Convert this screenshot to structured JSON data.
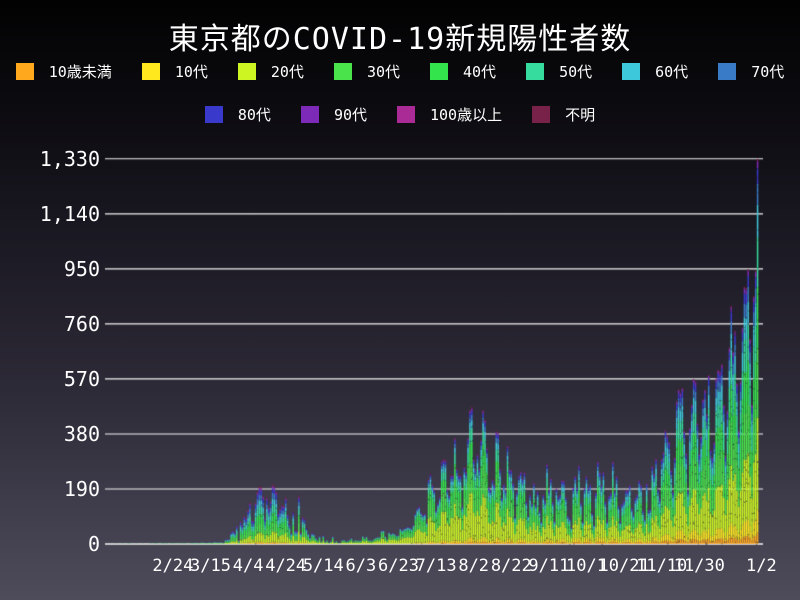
{
  "title": "東京都のCOVID-19新規陽性者数",
  "colors": {
    "background_top": "#020202",
    "background_bottom": "#4e4b5a",
    "text": "#ffffff",
    "grid": "#ffffff"
  },
  "legend": {
    "rows": [
      [
        {
          "label": "10歳未満",
          "color": "#ffa81e"
        },
        {
          "label": "10代",
          "color": "#ffe81e"
        },
        {
          "label": "20代",
          "color": "#ccf522"
        },
        {
          "label": "30代",
          "color": "#4be34b"
        },
        {
          "label": "40代",
          "color": "#33e44d"
        },
        {
          "label": "50代",
          "color": "#36dc9d"
        },
        {
          "label": "60代",
          "color": "#3ec8dc"
        },
        {
          "label": "70代",
          "color": "#3a7bc8"
        }
      ],
      [
        {
          "label": "80代",
          "color": "#3939cc"
        },
        {
          "label": "90代",
          "color": "#7d2ab8"
        },
        {
          "label": "100歳以上",
          "color": "#aa2a96"
        },
        {
          "label": "不明",
          "color": "#78224a"
        }
      ]
    ]
  },
  "chart_data": {
    "type": "bar",
    "subtype": "stacked-daily-bars",
    "title": "東京都のCOVID-19新規陽性者数",
    "ylabel": "",
    "xlabel": "",
    "ylim": [
      0,
      1330
    ],
    "grid": true,
    "legend_position": "top",
    "y_ticks": [
      "0",
      "190",
      "380",
      "570",
      "760",
      "950",
      "1,140",
      "1,330"
    ],
    "y_tick_values": [
      0,
      190,
      380,
      570,
      760,
      950,
      1140,
      1330
    ],
    "x_ticks": [
      {
        "label": "2/24",
        "day": 30
      },
      {
        "label": "3/15",
        "day": 50
      },
      {
        "label": "4/4",
        "day": 70
      },
      {
        "label": "4/24",
        "day": 90
      },
      {
        "label": "5/14",
        "day": 110
      },
      {
        "label": "6/3",
        "day": 130
      },
      {
        "label": "6/23",
        "day": 150
      },
      {
        "label": "7/13",
        "day": 170
      },
      {
        "label": "8/2",
        "day": 190
      },
      {
        "label": "8/22",
        "day": 210
      },
      {
        "label": "9/11",
        "day": 230
      },
      {
        "label": "10/1",
        "day": 250
      },
      {
        "label": "10/21",
        "day": 270
      },
      {
        "label": "11/10",
        "day": 290
      },
      {
        "label": "11/30",
        "day": 310
      },
      {
        "label": "1/2",
        "day": 343
      }
    ],
    "age_groups": [
      {
        "name": "10歳未満",
        "color": "#ffa81e"
      },
      {
        "name": "10代",
        "color": "#ffe81e"
      },
      {
        "name": "20代",
        "color": "#ccf522"
      },
      {
        "name": "30代",
        "color": "#4be34b"
      },
      {
        "name": "40代",
        "color": "#33e44d"
      },
      {
        "name": "50代",
        "color": "#36dc9d"
      },
      {
        "name": "60代",
        "color": "#3ec8dc"
      },
      {
        "name": "70代",
        "color": "#3a7bc8"
      },
      {
        "name": "80代",
        "color": "#3939cc"
      },
      {
        "name": "90代",
        "color": "#7d2ab8"
      },
      {
        "name": "100歳以上",
        "color": "#aa2a96"
      },
      {
        "name": "不明",
        "color": "#78224a"
      }
    ],
    "daily_totals": [
      1,
      0,
      0,
      1,
      1,
      0,
      2,
      2,
      0,
      1,
      0,
      1,
      0,
      0,
      1,
      0,
      0,
      0,
      2,
      1,
      2,
      3,
      2,
      0,
      3,
      3,
      2,
      3,
      1,
      2,
      3,
      2,
      1,
      2,
      2,
      2,
      3,
      2,
      1,
      2,
      3,
      4,
      5,
      2,
      3,
      5,
      6,
      2,
      4,
      6,
      5,
      3,
      8,
      7,
      6,
      7,
      6,
      3,
      16,
      17,
      18,
      41,
      47,
      40,
      63,
      13,
      78,
      66,
      97,
      89,
      118,
      143,
      83,
      80,
      144,
      181,
      199,
      197,
      166,
      91,
      161,
      127,
      149,
      206,
      201,
      181,
      107,
      123,
      134,
      132,
      161,
      103,
      72,
      39,
      112,
      47,
      46,
      165,
      39,
      93,
      87,
      57,
      38,
      23,
      39,
      36,
      22,
      15,
      28,
      10,
      30,
      9,
      14,
      5,
      10,
      27,
      5,
      11,
      3,
      2,
      14,
      15,
      10,
      10,
      15,
      21,
      9,
      14,
      13,
      12,
      12,
      28,
      20,
      26,
      14,
      13,
      12,
      18,
      22,
      25,
      24,
      47,
      48,
      27,
      16,
      41,
      35,
      39,
      35,
      29,
      31,
      55,
      48,
      54,
      57,
      60,
      58,
      54,
      67,
      107,
      124,
      131,
      111,
      102,
      106,
      75,
      224,
      243,
      206,
      188,
      119,
      143,
      165,
      286,
      293,
      290,
      188,
      168,
      237,
      238,
      366,
      260,
      239,
      237,
      131,
      266,
      250,
      367,
      463,
      472,
      292,
      258,
      309,
      263,
      360,
      462,
      429,
      331,
      197,
      188,
      222,
      206,
      389,
      385,
      260,
      161,
      207,
      186,
      339,
      258,
      256,
      212,
      95,
      182,
      236,
      250,
      226,
      247,
      148,
      100,
      170,
      141,
      211,
      136,
      181,
      116,
      77,
      170,
      149,
      276,
      187,
      226,
      146,
      80,
      191,
      163,
      171,
      220,
      218,
      162,
      98,
      88,
      59,
      195,
      235,
      195,
      270,
      144,
      78,
      194,
      235,
      196,
      207,
      108,
      66,
      177,
      284,
      248,
      203,
      249,
      146,
      78,
      166,
      177,
      284,
      184,
      235,
      132,
      78,
      139,
      150,
      185,
      186,
      203,
      124,
      102,
      158,
      171,
      221,
      204,
      116,
      87,
      209,
      116,
      122,
      269,
      242,
      294,
      189,
      157,
      293,
      317,
      393,
      374,
      352,
      255,
      180,
      298,
      493,
      534,
      522,
      539,
      391,
      314,
      186,
      401,
      481,
      570,
      561,
      418,
      311,
      372,
      500,
      533,
      449,
      584,
      327,
      299,
      352,
      572,
      602,
      595,
      621,
      480,
      305,
      460,
      678,
      822,
      664,
      736,
      556,
      392,
      563,
      748,
      888,
      884,
      949,
      708,
      481,
      856,
      944,
      1330
    ],
    "age_share_keyframes": [
      {
        "day": 0,
        "shares": [
          0.02,
          0.02,
          0.16,
          0.18,
          0.18,
          0.16,
          0.1,
          0.08,
          0.05,
          0.03,
          0.002,
          0.018
        ]
      },
      {
        "day": 80,
        "shares": [
          0.02,
          0.02,
          0.16,
          0.15,
          0.16,
          0.14,
          0.1,
          0.1,
          0.08,
          0.04,
          0.004,
          0.026
        ]
      },
      {
        "day": 135,
        "shares": [
          0.01,
          0.02,
          0.38,
          0.24,
          0.13,
          0.09,
          0.05,
          0.03,
          0.02,
          0.01,
          0.001,
          0.019
        ]
      },
      {
        "day": 190,
        "shares": [
          0.015,
          0.035,
          0.32,
          0.22,
          0.15,
          0.1,
          0.055,
          0.04,
          0.03,
          0.015,
          0.001,
          0.009
        ]
      },
      {
        "day": 250,
        "shares": [
          0.03,
          0.06,
          0.25,
          0.19,
          0.16,
          0.12,
          0.08,
          0.05,
          0.035,
          0.018,
          0.001,
          0.006
        ]
      },
      {
        "day": 341,
        "shares": [
          0.03,
          0.06,
          0.24,
          0.18,
          0.16,
          0.13,
          0.085,
          0.055,
          0.04,
          0.018,
          0.002,
          0.005
        ]
      }
    ]
  }
}
